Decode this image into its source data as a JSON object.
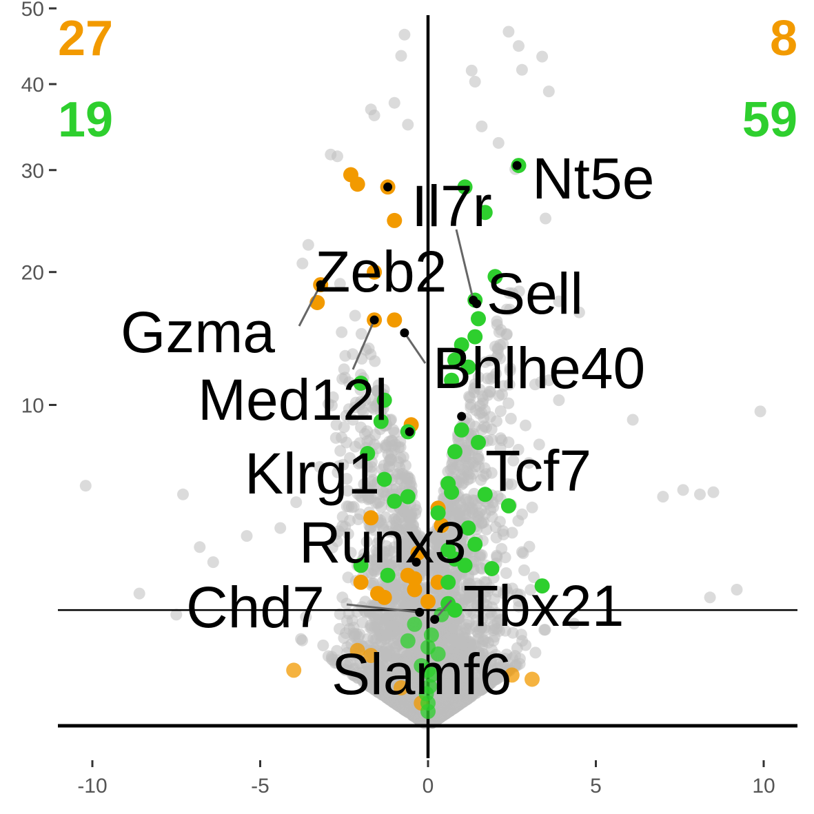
{
  "chart_data": {
    "type": "scatter",
    "title": "",
    "xlabel": "",
    "ylabel": "",
    "xlim": [
      -11,
      11
    ],
    "ylim_display": "square-root scaled y axis",
    "x_ticks": [
      -10,
      -5,
      0,
      5,
      10
    ],
    "x_tick_labels": [
      "-10",
      "-5",
      "0",
      "5",
      "10"
    ],
    "y_ticks": [
      10,
      20,
      30,
      40,
      50
    ],
    "y_tick_labels": [
      "10",
      "20",
      "30",
      "40",
      "50"
    ],
    "threshold_y": 1.3,
    "colors": {
      "background_points": "#bdbdbd",
      "down_orange": "#f29a00",
      "up_green": "#2ecf2e",
      "highlight": "#000000"
    },
    "counts": {
      "top_left": {
        "value": "27",
        "color": "#f29a00"
      },
      "bottom_left": {
        "value": "19",
        "color": "#2ecf2e"
      },
      "top_right": {
        "value": "8",
        "color": "#f29a00"
      },
      "bottom_right": {
        "value": "59",
        "color": "#2ecf2e"
      }
    },
    "series": [
      {
        "color": "#f29a00",
        "points": [
          [
            -2.3,
            29.5
          ],
          [
            -2.1,
            28.5
          ],
          [
            -1.2,
            28.2
          ],
          [
            -1.0,
            24.8
          ],
          [
            -1.6,
            20.0
          ],
          [
            -3.2,
            18.9
          ],
          [
            -3.3,
            17.4
          ],
          [
            -1.6,
            16.0
          ],
          [
            -1.0,
            16.0
          ],
          [
            -0.5,
            8.8
          ],
          [
            -1.7,
            4.2
          ],
          [
            -0.3,
            2.9
          ],
          [
            -0.6,
            2.2
          ],
          [
            -0.4,
            2.1
          ],
          [
            -2.0,
            2.0
          ],
          [
            -1.5,
            1.7
          ],
          [
            -1.3,
            1.6
          ],
          [
            0.0,
            1.5
          ],
          [
            0.3,
            2.0
          ],
          [
            -0.4,
            1.8
          ],
          [
            -1.7,
            0.48
          ],
          [
            -2.1,
            0.55
          ],
          [
            -4.0,
            0.3
          ],
          [
            -0.8,
            0.14
          ],
          [
            2.5,
            0.25
          ],
          [
            3.1,
            0.21
          ],
          [
            -0.2,
            0.05
          ],
          [
            0.4,
            3.9
          ],
          [
            0.3,
            4.6
          ]
        ]
      },
      {
        "color": "#2ecf2e",
        "points": [
          [
            1.1,
            28.2
          ],
          [
            1.7,
            25.6
          ],
          [
            2.0,
            19.6
          ],
          [
            1.4,
            17.6
          ],
          [
            2.7,
            30.5
          ],
          [
            1.5,
            16.1
          ],
          [
            1.4,
            14.7
          ],
          [
            1.0,
            14.1
          ],
          [
            0.8,
            13.0
          ],
          [
            1.2,
            12.5
          ],
          [
            0.7,
            11.6
          ],
          [
            -2.0,
            11.4
          ],
          [
            -1.3,
            10.3
          ],
          [
            -1.4,
            9.0
          ],
          [
            -0.6,
            8.4
          ],
          [
            1.0,
            8.5
          ],
          [
            1.5,
            7.8
          ],
          [
            0.8,
            7.3
          ],
          [
            -1.8,
            7.2
          ],
          [
            -1.3,
            5.9
          ],
          [
            0.6,
            5.7
          ],
          [
            0.7,
            5.3
          ],
          [
            -0.6,
            5.1
          ],
          [
            1.7,
            5.2
          ],
          [
            -1.0,
            4.9
          ],
          [
            2.4,
            4.7
          ],
          [
            0.3,
            4.4
          ],
          [
            1.2,
            3.8
          ],
          [
            1.4,
            3.2
          ],
          [
            0.6,
            3.0
          ],
          [
            1.9,
            2.4
          ],
          [
            0.8,
            2.7
          ],
          [
            1.1,
            2.5
          ],
          [
            -2.0,
            2.5
          ],
          [
            -1.2,
            2.2
          ],
          [
            0.6,
            2.0
          ],
          [
            3.4,
            1.9
          ],
          [
            0.6,
            1.45
          ],
          [
            0.8,
            1.3
          ],
          [
            0.4,
            1.2
          ],
          [
            -0.4,
            1.0
          ],
          [
            0.1,
            0.8
          ],
          [
            -0.6,
            0.7
          ],
          [
            0.0,
            0.6
          ],
          [
            0.3,
            0.5
          ],
          [
            -0.2,
            0.35
          ],
          [
            0.0,
            0.3
          ],
          [
            0.1,
            0.25
          ],
          [
            0.05,
            0.15
          ],
          [
            -0.05,
            0.1
          ],
          [
            0.0,
            0.05
          ],
          [
            0.0,
            0.02
          ]
        ]
      }
    ],
    "labeled_genes": [
      {
        "name": "Nt5e",
        "x": 2.65,
        "y": 30.5
      },
      {
        "name": "Il7r",
        "x": 1.35,
        "y": 17.6
      },
      {
        "name": "Sell",
        "x": 1.45,
        "y": 17.3
      },
      {
        "name": "Zeb2",
        "x": -1.2,
        "y": 28.2
      },
      {
        "name": "Gzma",
        "x": -3.2,
        "y": 18.9
      },
      {
        "name": "Med12l",
        "x": -1.6,
        "y": 16.0
      },
      {
        "name": "Bhlhe40",
        "x": -0.7,
        "y": 15.0
      },
      {
        "name": "Tcf7",
        "x": 1.0,
        "y": 9.3
      },
      {
        "name": "Klrg1",
        "x": -0.55,
        "y": 8.4
      },
      {
        "name": "Runx3",
        "x": -0.35,
        "y": 2.6
      },
      {
        "name": "Chd7",
        "x": -0.25,
        "y": 1.25
      },
      {
        "name": "Tbx21",
        "x": 0.2,
        "y": 1.1
      },
      {
        "name": "Slamf6",
        "x": 0.2,
        "y": 1.1
      }
    ]
  }
}
